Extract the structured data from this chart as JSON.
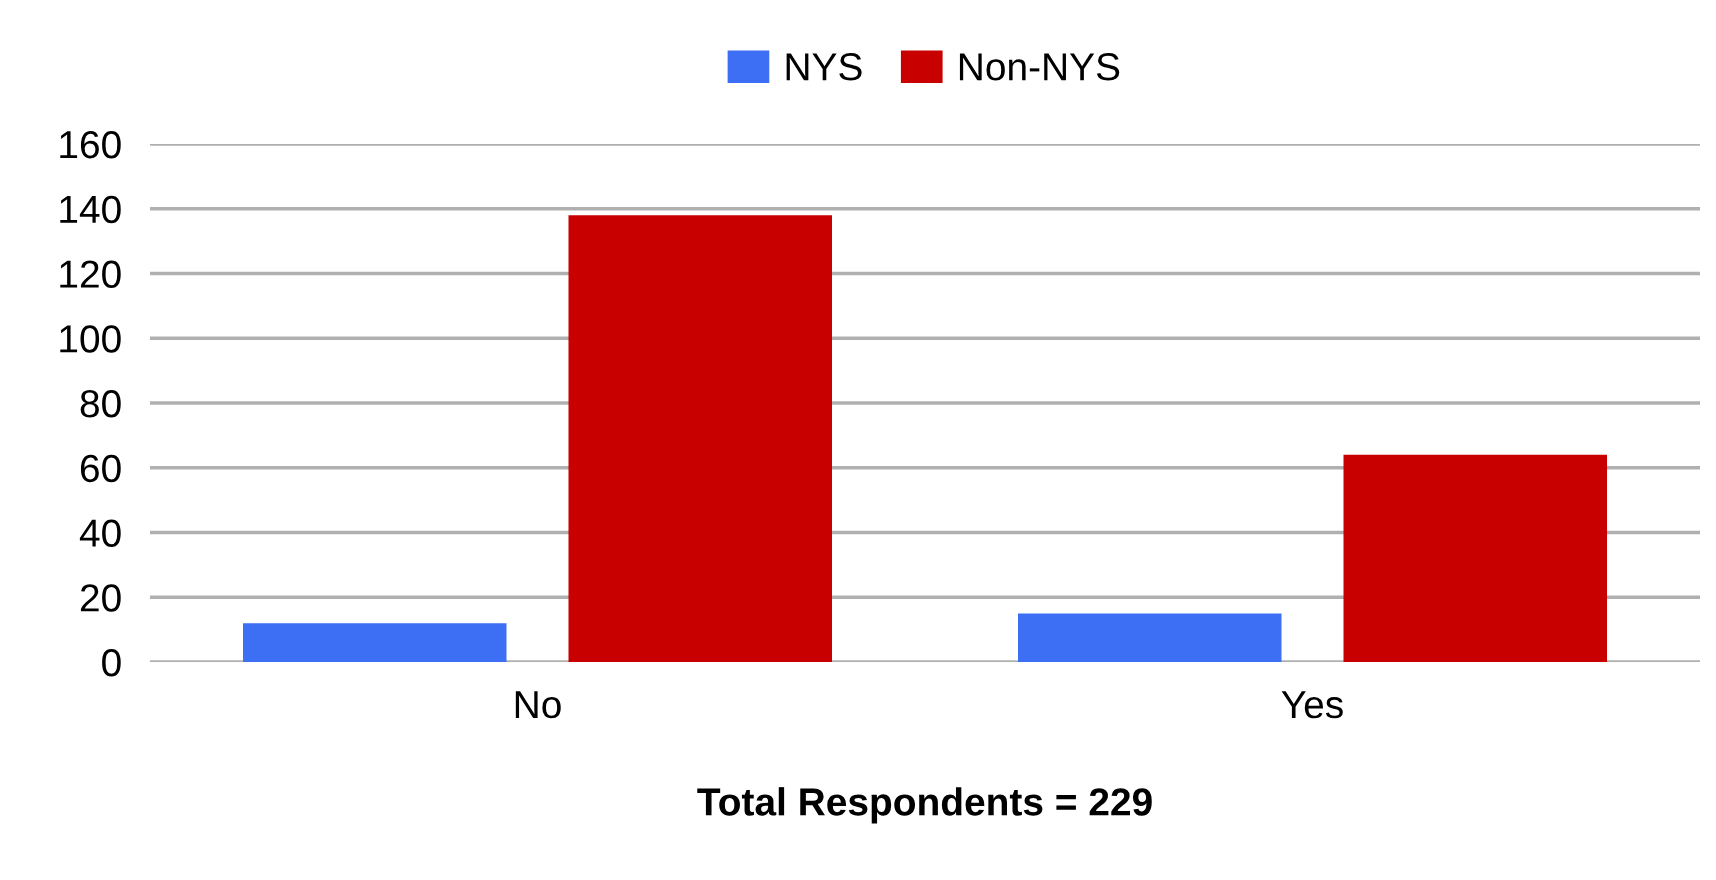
{
  "chart_data": {
    "type": "bar",
    "categories": [
      "No",
      "Yes"
    ],
    "series": [
      {
        "name": "NYS",
        "color": "#3d6ff5",
        "values": [
          12,
          15
        ]
      },
      {
        "name": "Non-NYS",
        "color": "#c80000",
        "values": [
          138,
          64
        ]
      }
    ],
    "xlabel": "Total Respondents = 229",
    "ylim": [
      0,
      160
    ],
    "yticks": [
      0,
      20,
      40,
      60,
      80,
      100,
      120,
      140,
      160
    ],
    "grid": "y",
    "legend": "top"
  }
}
